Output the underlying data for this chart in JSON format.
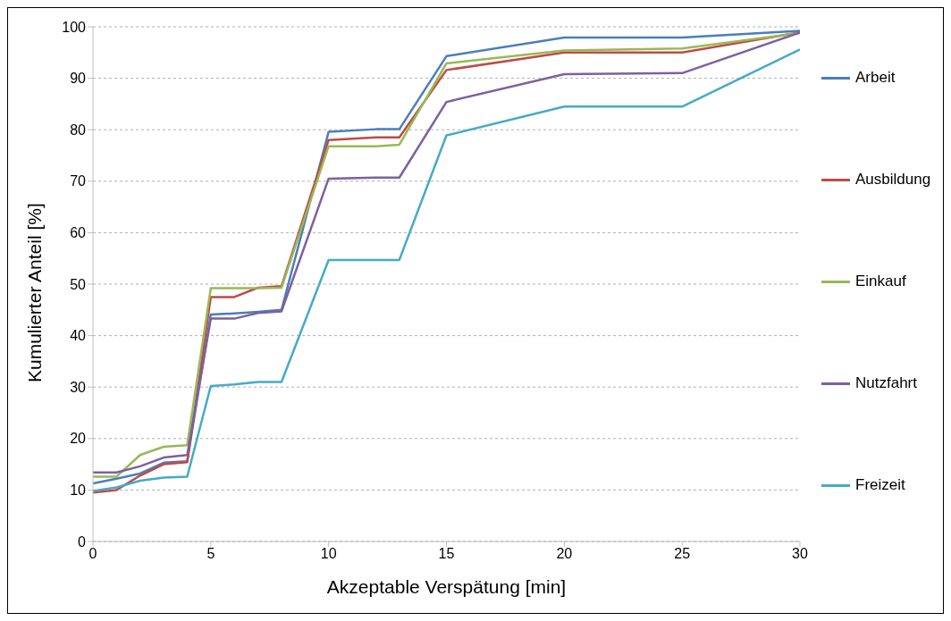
{
  "chart_data": {
    "type": "line",
    "xlabel": "Akzeptable Verspätung [min]",
    "ylabel": "Kumulierter Anteil [%]",
    "x": [
      0,
      1,
      2,
      3,
      4,
      5,
      6,
      7,
      8,
      10,
      12,
      13,
      15,
      20,
      25,
      30
    ],
    "series": [
      {
        "name": "Arbeit",
        "color": "#4a7ebb",
        "values": [
          11.3,
          12.2,
          13.2,
          15.3,
          15.6,
          44.1,
          44.3,
          44.6,
          45.0,
          79.6,
          80.1,
          80.1,
          94.3,
          97.9,
          97.9,
          99.2
        ]
      },
      {
        "name": "Ausbildung",
        "color": "#be4b48",
        "values": [
          9.5,
          10.0,
          12.8,
          15.0,
          15.4,
          47.5,
          47.5,
          49.3,
          49.6,
          78.0,
          78.5,
          78.5,
          91.6,
          95.0,
          95.0,
          98.9
        ]
      },
      {
        "name": "Einkauf",
        "color": "#98b954",
        "values": [
          12.6,
          12.6,
          16.8,
          18.4,
          18.7,
          49.2,
          49.2,
          49.2,
          49.3,
          76.8,
          76.8,
          77.1,
          92.9,
          95.4,
          95.8,
          98.8
        ]
      },
      {
        "name": "Nutzfahrt",
        "color": "#7d60a0",
        "values": [
          13.4,
          13.4,
          14.6,
          16.3,
          16.8,
          43.3,
          43.3,
          44.4,
          44.7,
          70.5,
          70.7,
          70.7,
          85.4,
          90.8,
          91.0,
          98.9
        ]
      },
      {
        "name": "Freizeit",
        "color": "#46aac5",
        "values": [
          9.8,
          10.5,
          11.8,
          12.4,
          12.6,
          30.2,
          30.5,
          31.0,
          31.0,
          54.7,
          54.7,
          54.7,
          78.9,
          84.5,
          84.5,
          95.6
        ]
      }
    ],
    "xlim": [
      0,
      30
    ],
    "xticks": [
      0,
      5,
      10,
      15,
      20,
      25,
      30
    ],
    "ylim": [
      0,
      100
    ],
    "yticks": [
      0,
      10,
      20,
      30,
      40,
      50,
      60,
      70,
      80,
      90,
      100
    ],
    "grid": "y",
    "legend": "right",
    "marker": "none",
    "line_style": "solid"
  }
}
